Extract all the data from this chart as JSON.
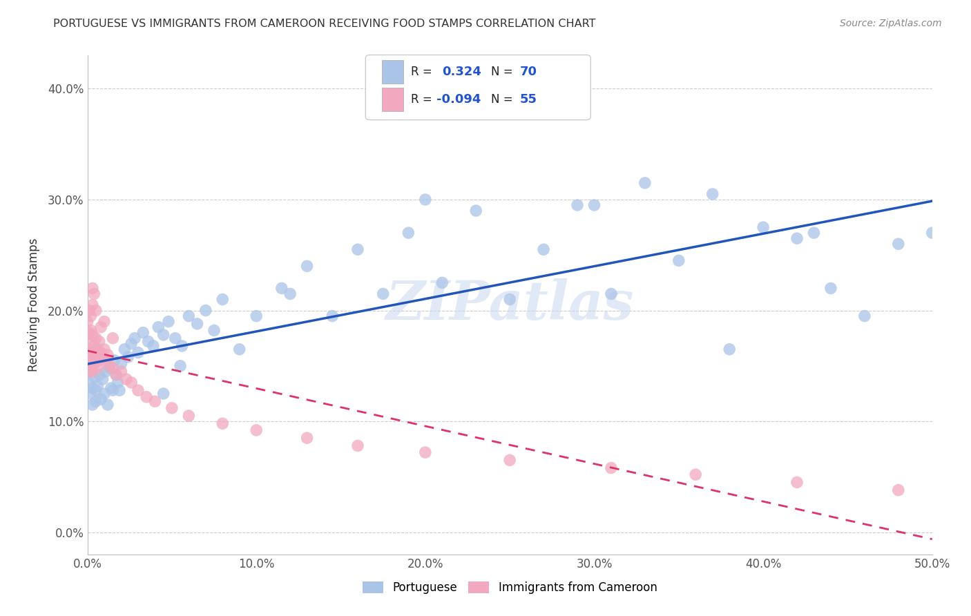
{
  "title": "PORTUGUESE VS IMMIGRANTS FROM CAMEROON RECEIVING FOOD STAMPS CORRELATION CHART",
  "source": "Source: ZipAtlas.com",
  "ylabel": "Receiving Food Stamps",
  "xmin": 0.0,
  "xmax": 0.5,
  "ymin": -0.02,
  "ymax": 0.43,
  "x_ticks": [
    0.0,
    0.1,
    0.2,
    0.3,
    0.4,
    0.5
  ],
  "x_tick_labels": [
    "0.0%",
    "10.0%",
    "20.0%",
    "30.0%",
    "40.0%",
    "50.0%"
  ],
  "y_ticks": [
    0.0,
    0.1,
    0.2,
    0.3,
    0.4
  ],
  "y_tick_labels": [
    "0.0%",
    "10.0%",
    "20.0%",
    "30.0%",
    "40.0%"
  ],
  "watermark": "ZIPatlas",
  "blue_color": "#aac4e8",
  "pink_color": "#f2a8be",
  "blue_line_color": "#2255bb",
  "pink_line_color": "#dd3366",
  "r_value_color": "#2255cc",
  "portuguese_x": [
    0.001,
    0.002,
    0.003,
    0.003,
    0.004,
    0.005,
    0.005,
    0.006,
    0.007,
    0.008,
    0.009,
    0.01,
    0.011,
    0.012,
    0.013,
    0.014,
    0.015,
    0.016,
    0.017,
    0.018,
    0.019,
    0.02,
    0.022,
    0.024,
    0.026,
    0.028,
    0.03,
    0.033,
    0.036,
    0.039,
    0.042,
    0.045,
    0.048,
    0.052,
    0.056,
    0.06,
    0.065,
    0.07,
    0.075,
    0.08,
    0.09,
    0.1,
    0.115,
    0.13,
    0.145,
    0.16,
    0.175,
    0.19,
    0.21,
    0.23,
    0.25,
    0.27,
    0.29,
    0.31,
    0.33,
    0.35,
    0.37,
    0.4,
    0.42,
    0.44,
    0.46,
    0.48,
    0.5,
    0.045,
    0.055,
    0.12,
    0.2,
    0.3,
    0.38,
    0.43
  ],
  "portuguese_y": [
    0.135,
    0.125,
    0.13,
    0.115,
    0.14,
    0.128,
    0.118,
    0.132,
    0.142,
    0.12,
    0.138,
    0.125,
    0.145,
    0.115,
    0.148,
    0.13,
    0.128,
    0.155,
    0.142,
    0.135,
    0.128,
    0.152,
    0.165,
    0.158,
    0.17,
    0.175,
    0.162,
    0.18,
    0.172,
    0.168,
    0.185,
    0.178,
    0.19,
    0.175,
    0.168,
    0.195,
    0.188,
    0.2,
    0.182,
    0.21,
    0.165,
    0.195,
    0.22,
    0.24,
    0.195,
    0.255,
    0.215,
    0.27,
    0.225,
    0.29,
    0.21,
    0.255,
    0.295,
    0.215,
    0.315,
    0.245,
    0.305,
    0.275,
    0.265,
    0.22,
    0.195,
    0.26,
    0.27,
    0.125,
    0.15,
    0.215,
    0.3,
    0.295,
    0.165,
    0.27
  ],
  "cameroon_x": [
    0.0,
    0.0,
    0.0,
    0.001,
    0.001,
    0.001,
    0.001,
    0.002,
    0.002,
    0.002,
    0.002,
    0.003,
    0.003,
    0.003,
    0.004,
    0.004,
    0.005,
    0.005,
    0.006,
    0.006,
    0.007,
    0.007,
    0.008,
    0.009,
    0.01,
    0.011,
    0.012,
    0.013,
    0.015,
    0.017,
    0.02,
    0.023,
    0.026,
    0.03,
    0.035,
    0.04,
    0.05,
    0.06,
    0.08,
    0.1,
    0.13,
    0.16,
    0.2,
    0.25,
    0.31,
    0.36,
    0.42,
    0.48,
    0.003,
    0.003,
    0.004,
    0.005,
    0.008,
    0.01,
    0.015
  ],
  "cameroon_y": [
    0.155,
    0.175,
    0.19,
    0.145,
    0.16,
    0.18,
    0.2,
    0.148,
    0.165,
    0.182,
    0.195,
    0.145,
    0.162,
    0.178,
    0.152,
    0.168,
    0.158,
    0.175,
    0.148,
    0.165,
    0.155,
    0.172,
    0.162,
    0.158,
    0.165,
    0.155,
    0.16,
    0.15,
    0.148,
    0.142,
    0.145,
    0.138,
    0.135,
    0.128,
    0.122,
    0.118,
    0.112,
    0.105,
    0.098,
    0.092,
    0.085,
    0.078,
    0.072,
    0.065,
    0.058,
    0.052,
    0.045,
    0.038,
    0.22,
    0.205,
    0.215,
    0.2,
    0.185,
    0.19,
    0.175
  ]
}
